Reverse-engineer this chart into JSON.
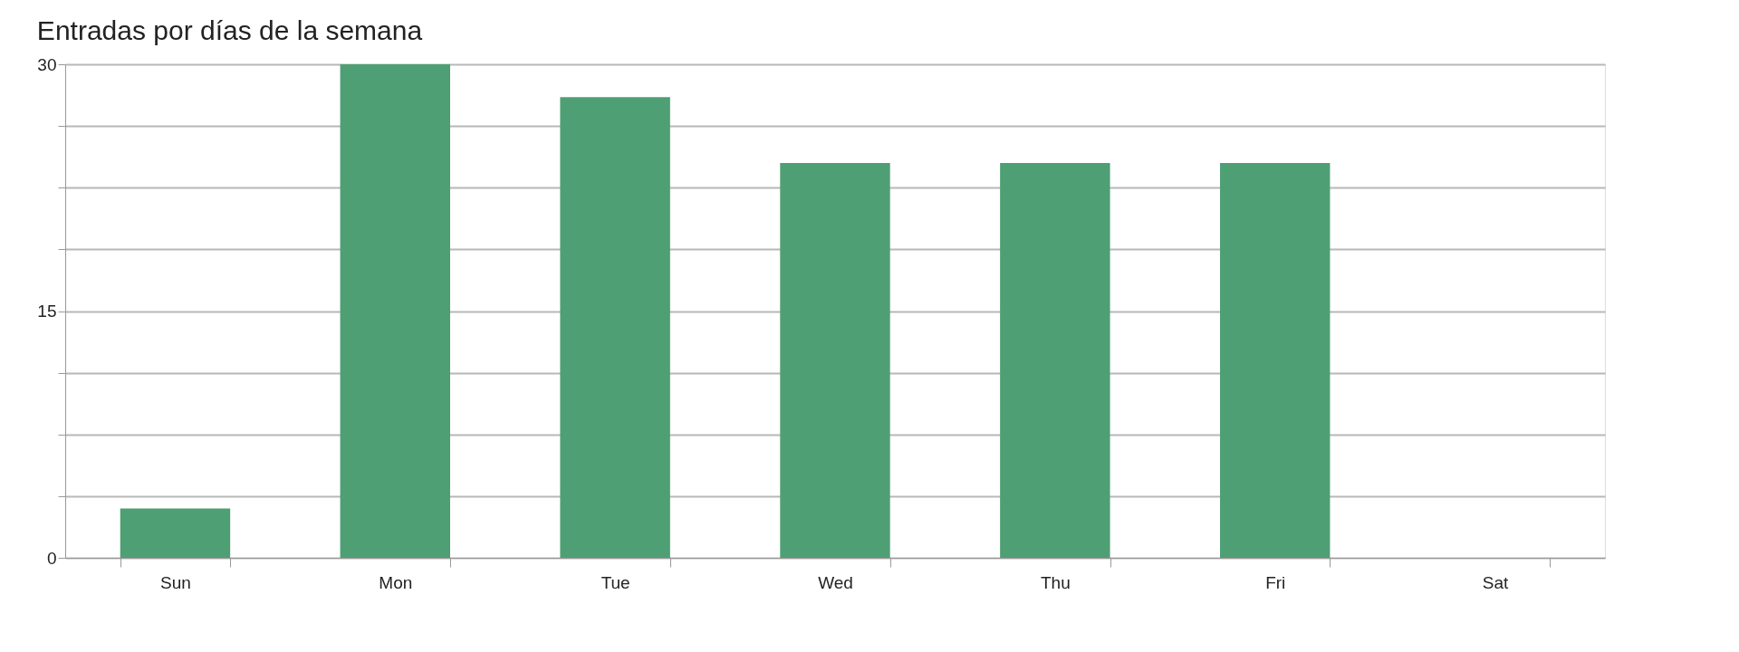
{
  "chart_data": {
    "type": "bar",
    "title": "Entradas por días de la semana",
    "categories": [
      "Sun",
      "Mon",
      "Tue",
      "Wed",
      "Thu",
      "Fri",
      "Sat"
    ],
    "values": [
      3,
      30,
      28,
      24,
      24,
      24,
      0
    ],
    "color": "#4f9f74",
    "ylim": [
      0,
      30
    ],
    "yticks": [
      0,
      {
        "value": 3.75,
        "label": null
      },
      {
        "value": 7.5,
        "label": null
      },
      {
        "value": 11.25,
        "label": null
      },
      15,
      {
        "value": 18.75,
        "label": null
      },
      {
        "value": 22.5,
        "label": null
      },
      {
        "value": 26.25,
        "label": null
      },
      30
    ],
    "grid": "y"
  }
}
